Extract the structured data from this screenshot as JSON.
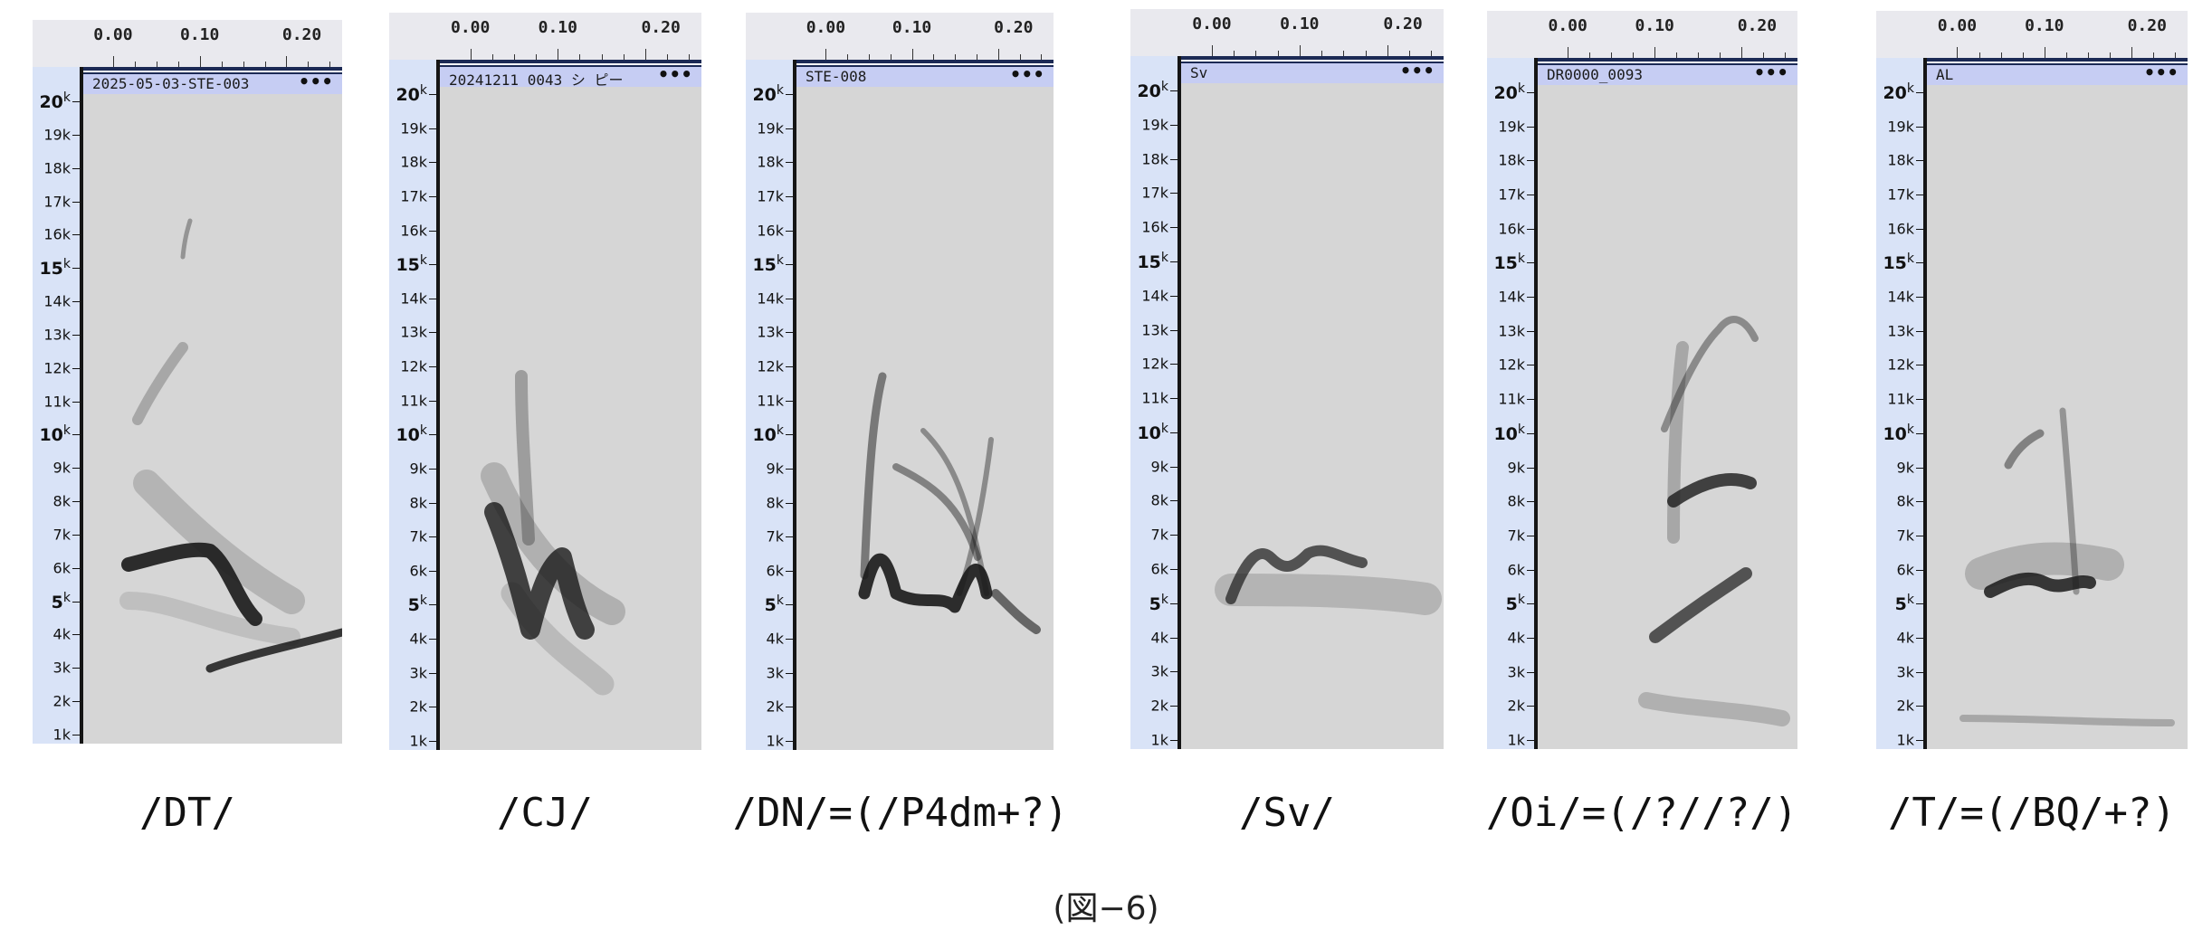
{
  "time_ticks": [
    "0.00",
    "0.10",
    "0.20"
  ],
  "freq_ticks": [
    {
      "label": "20",
      "unit": "k",
      "bold": true
    },
    {
      "label": "19k",
      "bold": false
    },
    {
      "label": "18k",
      "bold": false
    },
    {
      "label": "17k",
      "bold": false
    },
    {
      "label": "16k",
      "bold": false
    },
    {
      "label": "15",
      "unit": "k",
      "bold": true
    },
    {
      "label": "14k",
      "bold": false
    },
    {
      "label": "13k",
      "bold": false
    },
    {
      "label": "12k",
      "bold": false
    },
    {
      "label": "11k",
      "bold": false
    },
    {
      "label": "10",
      "unit": "k",
      "bold": true
    },
    {
      "label": "9k",
      "bold": false
    },
    {
      "label": "8k",
      "bold": false
    },
    {
      "label": "7k",
      "bold": false
    },
    {
      "label": "6k",
      "bold": false
    },
    {
      "label": "5",
      "unit": "k",
      "bold": true
    },
    {
      "label": "4k",
      "bold": false
    },
    {
      "label": "3k",
      "bold": false
    },
    {
      "label": "2k",
      "bold": false
    },
    {
      "label": "1k",
      "bold": false
    }
  ],
  "panels": [
    {
      "track_name": "2025-05-03-STE-003",
      "menu": "•••",
      "caption": "/DT/"
    },
    {
      "track_name": "20241211 0043 シ ピー",
      "menu": "•••",
      "caption": "/CJ/"
    },
    {
      "track_name": "STE-008",
      "menu": "•••",
      "caption": "/DN/=(/P4dm+?)"
    },
    {
      "track_name": "Sv",
      "menu": "•••",
      "caption": "/Sv/"
    },
    {
      "track_name": "DR0000_0093",
      "menu": "•••",
      "caption": "/Oi/=(/?//?/)"
    },
    {
      "track_name": "AL",
      "menu": "•••",
      "caption": "/T/=(/BQ/+?)"
    }
  ],
  "figure_caption": "(図−6)",
  "colors": {
    "spectrogram_bg": "#d6d6d6",
    "ink": "#1a1a1a",
    "ruler_bg": "#d9e3f7",
    "trackbar_bg": "#c6cdf3"
  }
}
